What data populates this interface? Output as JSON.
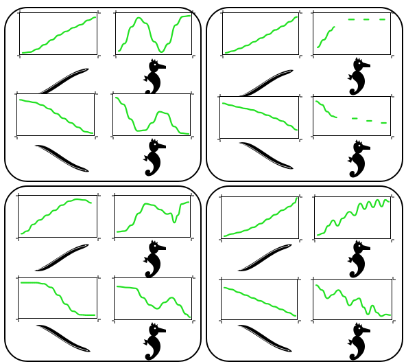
{
  "figure": {
    "panels": [
      {
        "name": "panel-top-left",
        "plots": [
          {
            "animal": "eel",
            "direction": "up",
            "curve": [
              [
                0,
                0
              ],
              [
                0.1,
                0.02
              ],
              [
                0.2,
                0.1
              ],
              [
                0.3,
                0.22
              ],
              [
                0.4,
                0.35
              ],
              [
                0.5,
                0.48
              ],
              [
                0.6,
                0.58
              ],
              [
                0.7,
                0.68
              ],
              [
                0.8,
                0.76
              ],
              [
                0.9,
                0.88
              ],
              [
                1,
                0.96
              ]
            ],
            "dotted": false
          },
          {
            "animal": "seahorse",
            "direction": "up",
            "curve": [
              [
                0,
                0.05
              ],
              [
                0.08,
                0.25
              ],
              [
                0.18,
                0.7
              ],
              [
                0.28,
                0.95
              ],
              [
                0.38,
                0.8
              ],
              [
                0.5,
                0.3
              ],
              [
                0.6,
                0.02
              ],
              [
                0.7,
                0.25
              ],
              [
                0.8,
                0.75
              ],
              [
                0.9,
                0.98
              ],
              [
                1,
                1
              ]
            ],
            "dotted": false
          },
          {
            "animal": "eel",
            "direction": "down",
            "curve": [
              [
                0,
                0.92
              ],
              [
                0.1,
                0.88
              ],
              [
                0.2,
                0.85
              ],
              [
                0.3,
                0.78
              ],
              [
                0.4,
                0.68
              ],
              [
                0.5,
                0.55
              ],
              [
                0.6,
                0.42
              ],
              [
                0.7,
                0.3
              ],
              [
                0.8,
                0.18
              ],
              [
                0.9,
                0.06
              ],
              [
                1,
                0.02
              ]
            ],
            "dotted": false
          },
          {
            "animal": "seahorse",
            "direction": "down",
            "curve": [
              [
                0,
                0.98
              ],
              [
                0.1,
                0.8
              ],
              [
                0.2,
                0.4
              ],
              [
                0.3,
                0.08
              ],
              [
                0.4,
                0.1
              ],
              [
                0.5,
                0.3
              ],
              [
                0.6,
                0.6
              ],
              [
                0.7,
                0.55
              ],
              [
                0.8,
                0.2
              ],
              [
                0.9,
                0.02
              ],
              [
                1,
                0
              ]
            ],
            "dotted": false
          }
        ]
      },
      {
        "name": "panel-top-right",
        "plots": [
          {
            "animal": "eel",
            "direction": "up",
            "curve": [
              [
                0,
                0
              ],
              [
                0.1,
                0.05
              ],
              [
                0.2,
                0.12
              ],
              [
                0.3,
                0.2
              ],
              [
                0.4,
                0.3
              ],
              [
                0.5,
                0.4
              ],
              [
                0.6,
                0.5
              ],
              [
                0.7,
                0.62
              ],
              [
                0.8,
                0.72
              ],
              [
                0.9,
                0.84
              ],
              [
                1,
                0.97
              ]
            ],
            "dotted": false
          },
          {
            "animal": "seahorse",
            "direction": "up",
            "curve": [
              [
                0.02,
                0.15
              ],
              [
                0.1,
                0.35
              ],
              [
                0.2,
                0.6
              ],
              [
                0.25,
                0.7
              ]
            ],
            "dotted": false,
            "dashes": [
              [
                0.45,
                0.52,
                0.9
              ],
              [
                0.66,
                0.72,
                0.9
              ],
              [
                0.88,
                0.94,
                0.9
              ]
            ]
          },
          {
            "animal": "eel",
            "direction": "down",
            "curve": [
              [
                0,
                0.9
              ],
              [
                0.1,
                0.85
              ],
              [
                0.2,
                0.8
              ],
              [
                0.3,
                0.76
              ],
              [
                0.4,
                0.72
              ],
              [
                0.5,
                0.65
              ],
              [
                0.6,
                0.58
              ],
              [
                0.7,
                0.5
              ],
              [
                0.8,
                0.42
              ],
              [
                0.9,
                0.3
              ],
              [
                1,
                0.18
              ]
            ],
            "dotted": false
          },
          {
            "animal": "seahorse",
            "direction": "down",
            "curve": [
              [
                0,
                0.95
              ],
              [
                0.08,
                0.85
              ],
              [
                0.15,
                0.65
              ],
              [
                0.22,
                0.52
              ],
              [
                0.28,
                0.48
              ]
            ],
            "dotted": false,
            "dashes": [
              [
                0.5,
                0.56,
                0.45
              ],
              [
                0.7,
                0.76,
                0.38
              ],
              [
                0.9,
                0.96,
                0.32
              ]
            ]
          }
        ]
      },
      {
        "name": "panel-bottom-left",
        "plots": [
          {
            "animal": "eel",
            "direction": "up",
            "curve": [
              [
                0,
                0.05
              ],
              [
                0.08,
                0.12
              ],
              [
                0.16,
                0.3
              ],
              [
                0.25,
                0.42
              ],
              [
                0.35,
                0.55
              ],
              [
                0.45,
                0.68
              ],
              [
                0.55,
                0.82
              ],
              [
                0.65,
                0.93
              ],
              [
                0.75,
                0.98
              ],
              [
                0.85,
                0.96
              ],
              [
                0.95,
                0.88
              ]
            ],
            "dotted": true
          },
          {
            "animal": "seahorse",
            "direction": "up",
            "curve": [
              [
                0,
                0.1
              ],
              [
                0.1,
                0.12
              ],
              [
                0.2,
                0.28
              ],
              [
                0.3,
                0.6
              ],
              [
                0.4,
                0.86
              ],
              [
                0.5,
                0.82
              ],
              [
                0.6,
                0.7
              ],
              [
                0.7,
                0.58
              ],
              [
                0.75,
                0.6
              ],
              [
                0.8,
                0.35
              ],
              [
                0.85,
                0.55
              ],
              [
                0.9,
                0.85
              ],
              [
                1,
                0.9
              ]
            ],
            "dotted": false
          },
          {
            "animal": "eel",
            "direction": "down",
            "curve": [
              [
                0,
                0.95
              ],
              [
                0.2,
                0.95
              ],
              [
                0.3,
                0.92
              ],
              [
                0.4,
                0.82
              ],
              [
                0.5,
                0.6
              ],
              [
                0.6,
                0.35
              ],
              [
                0.7,
                0.15
              ],
              [
                0.8,
                0.05
              ],
              [
                0.9,
                0.04
              ],
              [
                1,
                0.04
              ]
            ],
            "dotted": true
          },
          {
            "animal": "seahorse",
            "direction": "down",
            "curve": [
              [
                0,
                0.85
              ],
              [
                0.15,
                0.82
              ],
              [
                0.25,
                0.8
              ],
              [
                0.35,
                0.55
              ],
              [
                0.45,
                0.35
              ],
              [
                0.55,
                0.25
              ],
              [
                0.65,
                0.42
              ],
              [
                0.75,
                0.55
              ],
              [
                0.85,
                0.35
              ],
              [
                0.95,
                0.1
              ],
              [
                1,
                0.02
              ]
            ],
            "dotted": false
          }
        ]
      },
      {
        "name": "panel-bottom-right",
        "plots": [
          {
            "animal": "eel",
            "direction": "up",
            "curve": [
              [
                0,
                0.02
              ],
              [
                0.1,
                0.08
              ],
              [
                0.2,
                0.12
              ],
              [
                0.3,
                0.18
              ],
              [
                0.4,
                0.26
              ],
              [
                0.5,
                0.36
              ],
              [
                0.6,
                0.48
              ],
              [
                0.7,
                0.6
              ],
              [
                0.8,
                0.72
              ],
              [
                0.9,
                0.82
              ],
              [
                0.97,
                0.92
              ],
              [
                1,
                1.05
              ]
            ],
            "dotted": false
          },
          {
            "animal": "seahorse",
            "direction": "up",
            "curve": [
              [
                0,
                0.05
              ],
              [
                0.08,
                0.1
              ],
              [
                0.15,
                0.3
              ],
              [
                0.22,
                0.45
              ],
              [
                0.28,
                0.3
              ],
              [
                0.35,
                0.5
              ],
              [
                0.45,
                0.68
              ],
              [
                0.52,
                0.58
              ],
              [
                0.6,
                0.9
              ],
              [
                0.66,
                0.75
              ],
              [
                0.72,
                0.95
              ],
              [
                0.78,
                0.8
              ],
              [
                0.84,
                1
              ],
              [
                0.9,
                0.82
              ],
              [
                0.95,
                1
              ],
              [
                1,
                0.95
              ]
            ],
            "dotted": false
          },
          {
            "animal": "eel",
            "direction": "down",
            "curve": [
              [
                0,
                0.85
              ],
              [
                0.1,
                0.8
              ],
              [
                0.2,
                0.72
              ],
              [
                0.3,
                0.64
              ],
              [
                0.4,
                0.56
              ],
              [
                0.5,
                0.48
              ],
              [
                0.6,
                0.4
              ],
              [
                0.7,
                0.32
              ],
              [
                0.8,
                0.24
              ],
              [
                0.9,
                0.15
              ],
              [
                1,
                0.06
              ]
            ],
            "dotted": false
          },
          {
            "animal": "seahorse",
            "direction": "down",
            "curve": [
              [
                0,
                0.92
              ],
              [
                0.08,
                0.78
              ],
              [
                0.15,
                0.55
              ],
              [
                0.22,
                0.65
              ],
              [
                0.3,
                0.78
              ],
              [
                0.38,
                0.6
              ],
              [
                0.45,
                0.35
              ],
              [
                0.52,
                0.5
              ],
              [
                0.58,
                0.55
              ],
              [
                0.64,
                0.3
              ],
              [
                0.7,
                0.1
              ],
              [
                0.76,
                0.35
              ],
              [
                0.82,
                0.15
              ],
              [
                0.88,
                0.05
              ],
              [
                0.94,
                0.1
              ],
              [
                1,
                0.08
              ]
            ],
            "dotted": false
          }
        ]
      }
    ],
    "colors": {
      "curve": "#22e022",
      "frame": "#000000",
      "silhouette": "#000000",
      "background": "#ffffff"
    },
    "icons": {
      "eel": "eel-silhouette-icon",
      "seahorse": "seahorse-silhouette-icon"
    }
  }
}
